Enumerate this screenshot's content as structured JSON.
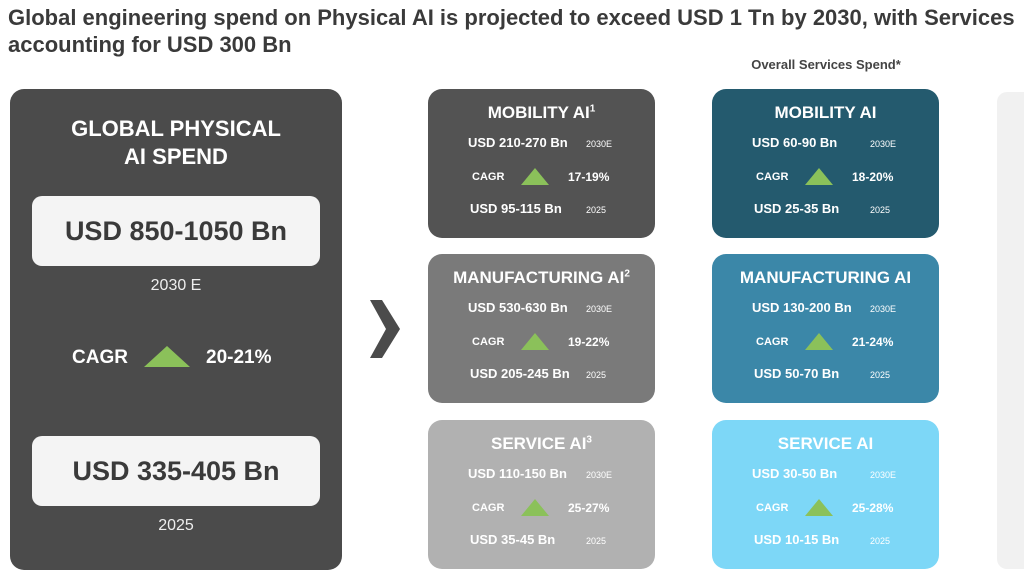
{
  "title": "Global engineering spend on Physical AI is projected to exceed USD 1 Tn by 2030, with Services accounting for USD 300 Bn",
  "services_header": "Overall Services Spend*",
  "global": {
    "title_line1": "GLOBAL PHYSICAL",
    "title_line2": "AI SPEND",
    "value_2030": "USD 850-1050 Bn",
    "label_2030": "2030 E",
    "cagr_label": "CAGR",
    "cagr_value": "20-21%",
    "value_2025": "USD 335-405 Bn",
    "label_2025": "2025"
  },
  "colors": {
    "left_panel": "#4b4b4b",
    "mobility": "#535353",
    "manufacturing": "#7a7a7a",
    "service": "#b1b1b1",
    "svc_mobility": "#245a6e",
    "svc_manufacturing": "#3b87a8",
    "svc_service": "#7dd7f7",
    "cagr_up": "#8bc15a"
  },
  "segments": [
    {
      "title": "MOBILITY AI",
      "sup": "1",
      "v2030": "USD 210-270 Bn",
      "y2030": "2030E",
      "cagr_label": "CAGR",
      "cagr": "17-19%",
      "v2025": "USD 95-115 Bn",
      "y2025": "2025"
    },
    {
      "title": "MANUFACTURING AI",
      "sup": "2",
      "v2030": "USD 530-630 Bn",
      "y2030": "2030E",
      "cagr_label": "CAGR",
      "cagr": "19-22%",
      "v2025": "USD 205-245 Bn",
      "y2025": "2025"
    },
    {
      "title": "SERVICE AI",
      "sup": "3",
      "v2030": "USD 110-150 Bn",
      "y2030": "2030E",
      "cagr_label": "CAGR",
      "cagr": "25-27%",
      "v2025": "USD 35-45 Bn",
      "y2025": "2025"
    }
  ],
  "services": [
    {
      "title": "MOBILITY AI",
      "v2030": "USD 60-90 Bn",
      "y2030": "2030E",
      "cagr_label": "CAGR",
      "cagr": "18-20%",
      "v2025": "USD 25-35 Bn",
      "y2025": "2025"
    },
    {
      "title": "MANUFACTURING AI",
      "v2030": "USD 130-200 Bn",
      "y2030": "2030E",
      "cagr_label": "CAGR",
      "cagr": "21-24%",
      "v2025": "USD 50-70 Bn",
      "y2025": "2025"
    },
    {
      "title": "SERVICE AI",
      "v2030": "USD 30-50 Bn",
      "y2030": "2030E",
      "cagr_label": "CAGR",
      "cagr": "25-28%",
      "v2025": "USD 10-15 Bn",
      "y2025": "2025"
    }
  ]
}
